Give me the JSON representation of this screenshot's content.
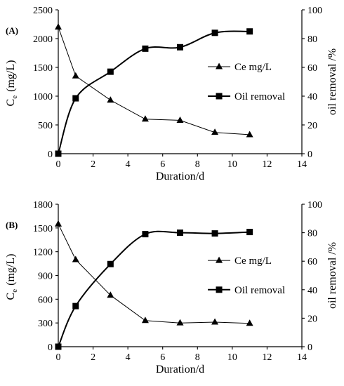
{
  "chart_data": [
    {
      "type": "line",
      "panel_label": "(A)",
      "xlabel": "Duration/d",
      "ylabel_main": "C",
      "ylabel_sub": "e",
      "ylabel_unit": "(mg/L)",
      "y2label": "oil removal /%",
      "xlim": [
        0,
        14
      ],
      "ylim": [
        0,
        2500
      ],
      "y2lim": [
        0,
        100
      ],
      "xticks": [
        "0",
        "2",
        "4",
        "6",
        "8",
        "10",
        "12",
        "14"
      ],
      "yticks": [
        "0",
        "500",
        "1000",
        "1500",
        "2000",
        "2500"
      ],
      "y2ticks": [
        "0",
        "20",
        "40",
        "60",
        "80",
        "100"
      ],
      "legend_position": "right-middle",
      "grid": false,
      "series": [
        {
          "name": "Ce mg/L",
          "axis": "left",
          "marker": "triangle",
          "line": "thin-straight",
          "x": [
            0,
            1,
            3,
            5,
            7,
            9,
            11
          ],
          "y": [
            2200,
            1350,
            930,
            600,
            580,
            370,
            330
          ]
        },
        {
          "name": "Oil removal",
          "axis": "right",
          "marker": "square",
          "line": "thick-smooth",
          "x": [
            0,
            1,
            3,
            5,
            7,
            9,
            11
          ],
          "y": [
            0,
            38.5,
            57,
            73,
            74,
            84,
            85
          ]
        }
      ]
    },
    {
      "type": "line",
      "panel_label": "(B)",
      "xlabel": "Duration/d",
      "ylabel_main": "C",
      "ylabel_sub": "e",
      "ylabel_unit": "(mg/L)",
      "y2label": "oil removal /%",
      "xlim": [
        0,
        14
      ],
      "ylim": [
        0,
        1800
      ],
      "y2lim": [
        0,
        100
      ],
      "xticks": [
        "0",
        "2",
        "4",
        "6",
        "8",
        "10",
        "12",
        "14"
      ],
      "yticks": [
        "0",
        "300",
        "600",
        "900",
        "1200",
        "1500",
        "1800"
      ],
      "y2ticks": [
        "0",
        "20",
        "40",
        "60",
        "80",
        "100"
      ],
      "legend_position": "right-middle",
      "grid": false,
      "series": [
        {
          "name": "Ce mg/L",
          "axis": "left",
          "marker": "triangle",
          "line": "thin-straight",
          "x": [
            0,
            1,
            3,
            5,
            7,
            9,
            11
          ],
          "y": [
            1550,
            1100,
            650,
            330,
            300,
            310,
            295
          ]
        },
        {
          "name": "Oil removal",
          "axis": "right",
          "marker": "square",
          "line": "thick-smooth",
          "x": [
            0,
            1,
            3,
            5,
            7,
            9,
            11
          ],
          "y": [
            0,
            28.5,
            58,
            79,
            80,
            79.5,
            80.5
          ]
        }
      ]
    }
  ]
}
